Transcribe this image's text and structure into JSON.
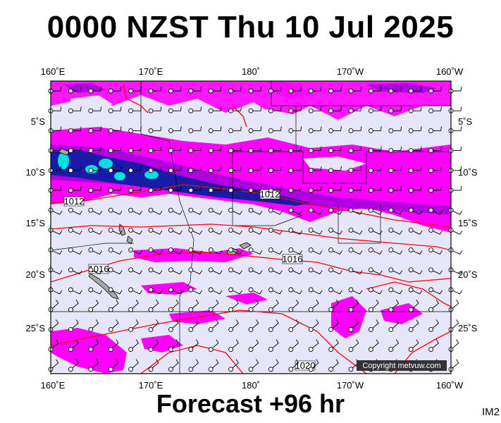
{
  "title": "0000 NZST Thu 10 Jul 2025",
  "footer": "Forecast +96 hr",
  "code": "IM2",
  "copyright": "Copyright metvuw.com",
  "map": {
    "lon_labels": [
      "160˚E",
      "170˚E",
      "180˚",
      "170˚W",
      "160˚W"
    ],
    "lat_labels": [
      "5˚S",
      "10˚S",
      "15˚S",
      "20˚S",
      "25˚S"
    ],
    "isobar_labels": [
      "1012",
      "1012",
      "1016",
      "1016",
      "1020"
    ],
    "colors": {
      "ocean": "#e6e6fa",
      "rain_light": "#ff00ff",
      "rain_medium": "#b000e0",
      "rain_heavy": "#1010a0",
      "rain_extreme": "#00e5e5",
      "isobar": "#ff0000",
      "land": "#a0a0a0"
    }
  }
}
